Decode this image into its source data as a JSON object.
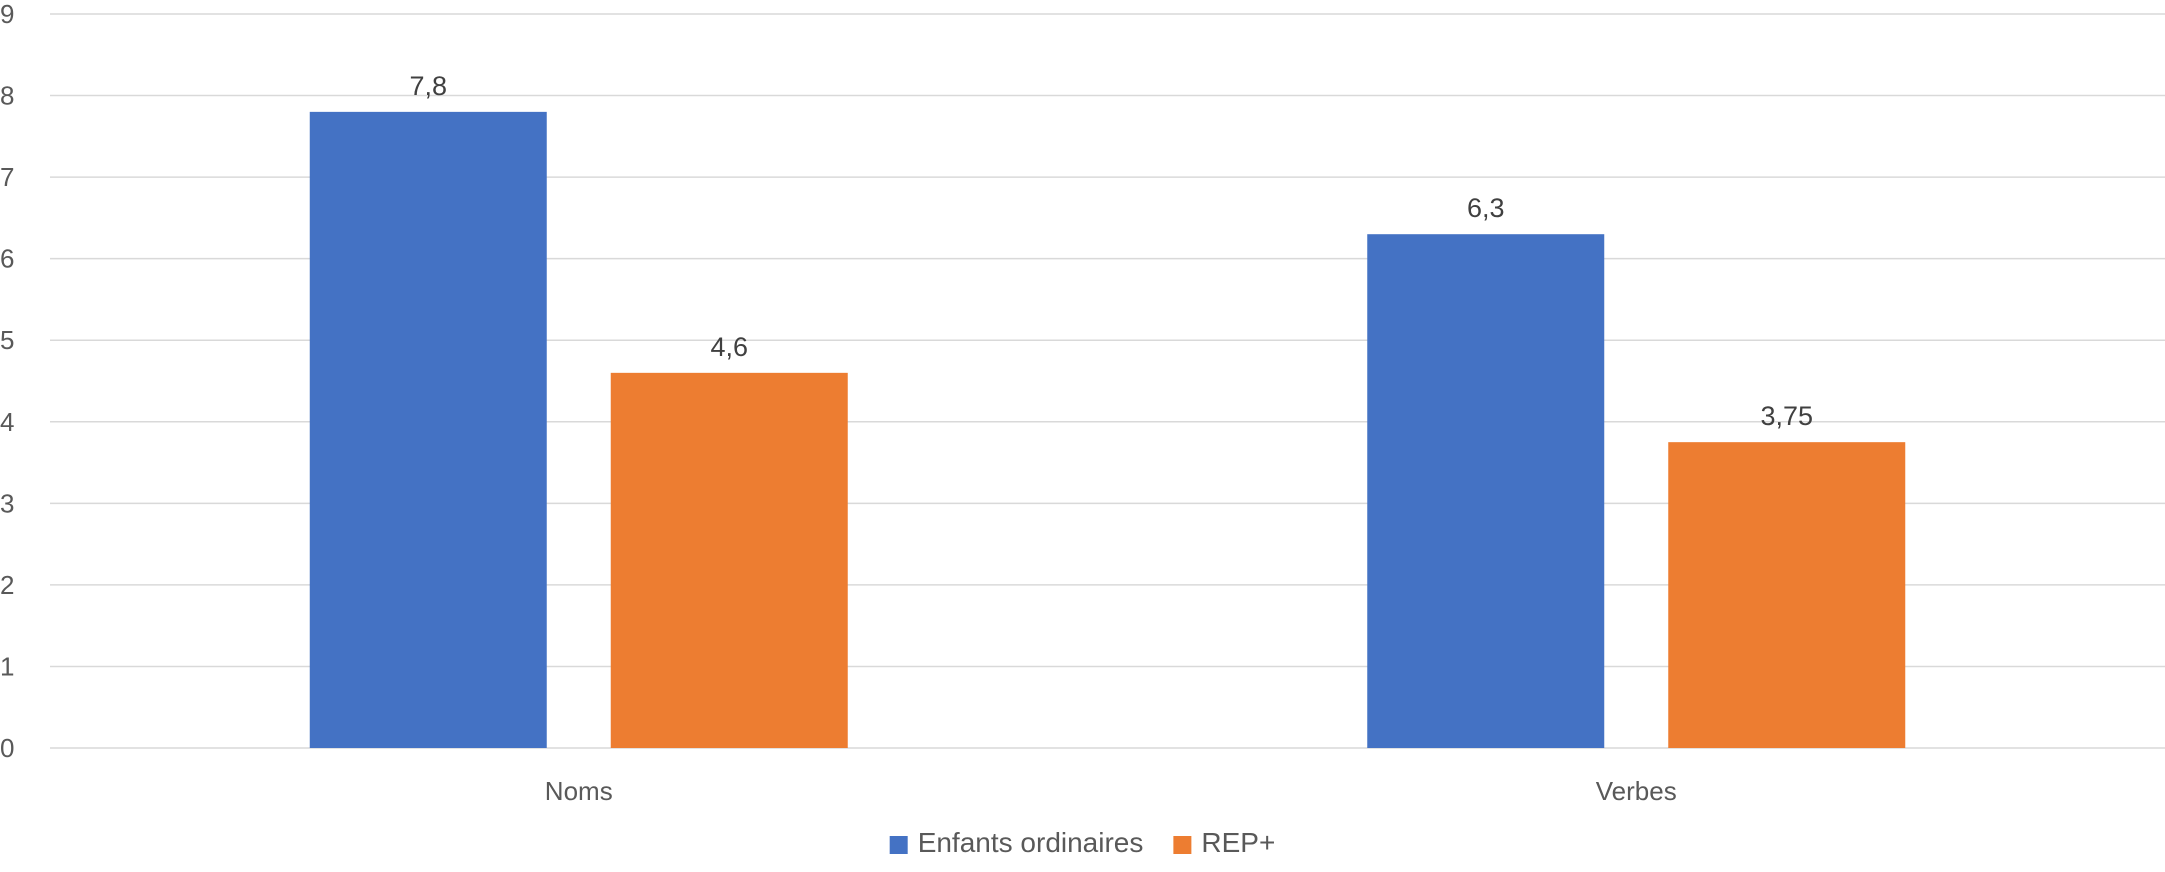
{
  "chart_data": {
    "type": "bar",
    "categories": [
      "Noms",
      "Verbes"
    ],
    "series": [
      {
        "name": "Enfants ordinaires",
        "values": [
          7.8,
          6.3
        ],
        "labels": [
          "7,8",
          "6,3"
        ],
        "color": "#4472C4"
      },
      {
        "name": "REP+",
        "values": [
          4.6,
          3.75
        ],
        "labels": [
          "4,6",
          "3,75"
        ],
        "color": "#ED7D31"
      }
    ],
    "title": "",
    "xlabel": "",
    "ylabel": "",
    "ylim": [
      0,
      9
    ],
    "yticks": [
      0,
      1,
      2,
      3,
      4,
      5,
      6,
      7,
      8,
      9
    ],
    "grid": true,
    "legend_position": "bottom",
    "gridline_color": "#D9D9D9"
  }
}
